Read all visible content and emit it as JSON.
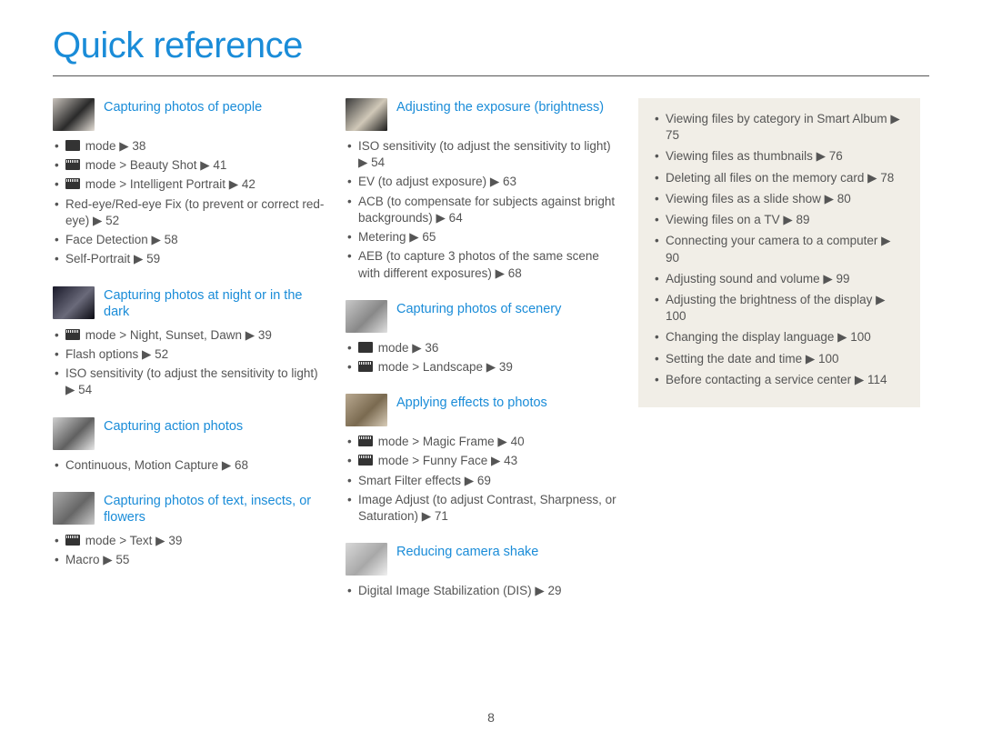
{
  "title": "Quick reference",
  "page_number": "8",
  "arrow": "▶",
  "col1": [
    {
      "title": "Capturing photos of people",
      "thumb_colors": [
        "#c8c2bb",
        "#2a2a2a",
        "#e6e0d8"
      ],
      "items": [
        {
          "prefix_icon": "person",
          "text": "mode ▶ 38"
        },
        {
          "prefix_icon": "scene",
          "text": "mode > Beauty Shot ▶ 41"
        },
        {
          "prefix_icon": "scene",
          "text": "mode > Intelligent Portrait ▶ 42"
        },
        {
          "text": "Red-eye/Red-eye Fix (to prevent or correct red-eye) ▶ 52"
        },
        {
          "text": "Face Detection ▶ 58"
        },
        {
          "text": "Self-Portrait ▶ 59"
        }
      ]
    },
    {
      "title": "Capturing photos at night or in the dark",
      "thumb_colors": [
        "#1a1a2a",
        "#6a6a7a",
        "#0a0a12"
      ],
      "items": [
        {
          "prefix_icon": "scene",
          "text": "mode > Night, Sunset, Dawn ▶ 39"
        },
        {
          "text": "Flash options ▶ 52"
        },
        {
          "text": "ISO sensitivity (to adjust the sensitivity to light) ▶ 54"
        }
      ]
    },
    {
      "title": "Capturing action photos",
      "thumb_colors": [
        "#d0d0d0",
        "#606060",
        "#e8e8e8"
      ],
      "items": [
        {
          "text": "Continuous, Motion Capture ▶ 68"
        }
      ]
    },
    {
      "title": "Capturing photos of text, insects, or flowers",
      "thumb_colors": [
        "#aaa",
        "#666",
        "#ccc"
      ],
      "items": [
        {
          "prefix_icon": "scene",
          "text": "mode > Text ▶ 39"
        },
        {
          "text": "Macro ▶ 55"
        }
      ]
    }
  ],
  "col2": [
    {
      "title": "Adjusting the exposure (brightness)",
      "thumb_colors": [
        "#3a3a3a",
        "#d0c8b8",
        "#1a1a1a"
      ],
      "items": [
        {
          "text": "ISO sensitivity (to adjust the sensitivity to light) ▶ 54"
        },
        {
          "text": "EV (to adjust exposure) ▶ 63"
        },
        {
          "text": "ACB (to compensate for subjects against bright backgrounds) ▶ 64"
        },
        {
          "text": "Metering ▶ 65"
        },
        {
          "text": "AEB (to capture 3 photos of the same scene with different exposures) ▶ 68"
        }
      ]
    },
    {
      "title": "Capturing photos of scenery",
      "thumb_colors": [
        "#c8c8c8",
        "#888",
        "#e0e0e0"
      ],
      "items": [
        {
          "prefix_icon": "landscape",
          "text": "mode ▶ 36"
        },
        {
          "prefix_icon": "scene",
          "text": "mode > Landscape ▶ 39"
        }
      ]
    },
    {
      "title": "Applying effects to photos",
      "thumb_colors": [
        "#b8a890",
        "#7a6a50",
        "#d8ccb8"
      ],
      "items": [
        {
          "prefix_icon": "scene",
          "text": "mode > Magic Frame ▶ 40"
        },
        {
          "prefix_icon": "scene",
          "text": "mode > Funny Face ▶ 43"
        },
        {
          "text": "Smart Filter effects ▶ 69"
        },
        {
          "text": "Image Adjust (to adjust Contrast, Sharpness, or Saturation) ▶ 71"
        }
      ]
    },
    {
      "title": "Reducing camera shake",
      "thumb_colors": [
        "#d8d8d8",
        "#a8a8a8",
        "#f0f0f0"
      ],
      "items": [
        {
          "text": "Digital Image Stabilization (DIS) ▶ 29"
        }
      ]
    }
  ],
  "sidebar": [
    "Viewing files by category in Smart Album ▶ 75",
    "Viewing files as thumbnails ▶ 76",
    "Deleting all files on the memory card ▶ 78",
    "Viewing files as a slide show ▶ 80",
    "Viewing files on a TV ▶ 89",
    "Connecting your camera to a computer ▶ 90",
    "Adjusting sound and volume ▶ 99",
    "Adjusting the brightness of the display ▶ 100",
    "Changing the display language ▶ 100",
    "Setting the date and time ▶ 100",
    "Before contacting a service center ▶ 114"
  ]
}
